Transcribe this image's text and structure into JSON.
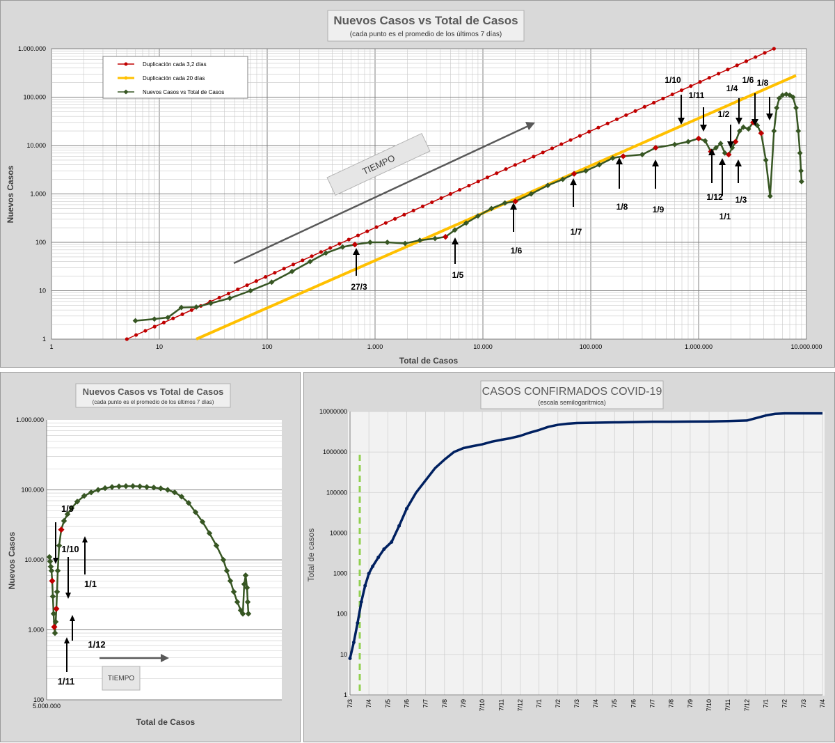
{
  "colors": {
    "red": "#c00000",
    "yellow": "#ffc000",
    "green": "#375623",
    "navy": "#002060",
    "dash": "#92d050",
    "arrow": "#595959"
  },
  "charts": {
    "top": {
      "title": "Nuevos Casos vs Total de Casos",
      "subtitle": "(cada punto  es el promedio  de los últimos  7 días)",
      "xlabel": "Total de Casos",
      "ylabel": "Nuevos Casos",
      "x_ticks": [
        "1",
        "10",
        "100",
        "1.000",
        "10.000",
        "100.000",
        "1.000.000",
        "10.000.000"
      ],
      "y_ticks": [
        "1",
        "10",
        "100",
        "1.000",
        "10.000",
        "100.000",
        "1.000.000"
      ],
      "legend": [
        "Duplicación cada 3,2 días",
        "Duplicación cada 20 días",
        "Nuevos Casos vs Total de Casos"
      ],
      "tiempo_label": "TIEMPO",
      "annotations_below": [
        "27/3",
        "1/5",
        "1/6",
        "1/7",
        "1/8",
        "1/9",
        "1/12",
        "1/1",
        "1/3"
      ],
      "annotations_above": [
        "1/10",
        "1/11",
        "1/2",
        "1/4",
        "1/6",
        "1/8"
      ]
    },
    "bottom_left": {
      "title": "Nuevos Casos vs Total de Casos",
      "subtitle": "(cada punto es el promedio de los últimos 7 días)",
      "xlabel": "Total de Casos",
      "ylabel": "Nuevos Casos",
      "x_ticks": [
        "5.000.000"
      ],
      "y_ticks": [
        "100",
        "1.000",
        "10.000",
        "100.000",
        "1.000.000"
      ],
      "tiempo_label": "TIEMPO",
      "annotations": [
        "1/9",
        "1/10",
        "1/1",
        "1/12",
        "1/11"
      ]
    },
    "bottom_right": {
      "title": "CASOS CONFIRMADOS COVID-19",
      "subtitle": "(escala semilogarítmica)",
      "ylabel": "Total de casos",
      "y_ticks": [
        "1",
        "10",
        "100",
        "1000",
        "10000",
        "100000",
        "1000000",
        "10000000"
      ],
      "x_ticks": [
        "7/3",
        "7/4",
        "7/5",
        "7/6",
        "7/7",
        "7/8",
        "7/9",
        "7/10",
        "7/11",
        "7/12",
        "7/1",
        "7/2",
        "7/3",
        "7/4",
        "7/5",
        "7/6",
        "7/7",
        "7/8",
        "7/9",
        "7/10",
        "7/11",
        "7/12",
        "7/1",
        "7/2",
        "7/3",
        "7/4"
      ]
    }
  },
  "chart_data": [
    {
      "type": "line",
      "scale": "log-log",
      "xlim": [
        1,
        10000000
      ],
      "ylim": [
        1,
        1000000
      ],
      "series": [
        {
          "name": "Duplicación cada 3,2 días",
          "x": [
            5,
            5000000
          ],
          "y": [
            1,
            1000000
          ]
        },
        {
          "name": "Duplicación cada 20 días",
          "x": [
            22,
            8000000
          ],
          "y": [
            1,
            280000
          ]
        },
        {
          "name": "Nuevos Casos vs Total de Casos",
          "x": [
            6,
            9,
            12,
            16,
            22,
            30,
            45,
            70,
            110,
            170,
            250,
            350,
            500,
            650,
            900,
            1300,
            1900,
            2600,
            3600,
            4500,
            5500,
            7000,
            9000,
            12000,
            16000,
            20000,
            28000,
            40000,
            55000,
            70000,
            90000,
            120000,
            160000,
            200000,
            300000,
            400000,
            600000,
            800000,
            1000000,
            1150000,
            1300000,
            1450000,
            1600000,
            1750000,
            1900000,
            2050000,
            2200000,
            2400000,
            2600000,
            2900000,
            3200000,
            3500000,
            3800000,
            4200000,
            4600000,
            5000000,
            5300000,
            5600000,
            6000000,
            6500000,
            7000000,
            7500000,
            8000000,
            8400000,
            8700000,
            8900000,
            9000000
          ],
          "y": [
            2.4,
            2.6,
            2.8,
            4.5,
            4.6,
            5.5,
            7,
            10,
            15,
            25,
            40,
            60,
            80,
            90,
            100,
            100,
            95,
            110,
            120,
            130,
            180,
            250,
            350,
            500,
            650,
            700,
            1000,
            1500,
            2000,
            2600,
            3000,
            4000,
            5500,
            6000,
            6500,
            9000,
            10500,
            12000,
            14000,
            12500,
            7500,
            9000,
            11000,
            7000,
            6500,
            9000,
            12000,
            20000,
            24000,
            22000,
            30000,
            26000,
            18000,
            5000,
            900,
            20000,
            60000,
            95000,
            110000,
            115000,
            110000,
            100000,
            60000,
            20000,
            7000,
            3000,
            1800
          ]
        }
      ]
    },
    {
      "type": "line",
      "scale": "semi-log",
      "ylim": [
        100,
        1000000
      ],
      "series": [
        {
          "name": "Nuevos Casos vs Total de Casos",
          "x": [
            0,
            1,
            2,
            3,
            4,
            5,
            6,
            7,
            8,
            9,
            10,
            11,
            12,
            14,
            17,
            21,
            26,
            32,
            40,
            50,
            60,
            70,
            80,
            90,
            100,
            110,
            120,
            130,
            140,
            150,
            160,
            170,
            180,
            190,
            200,
            210,
            220,
            230,
            240,
            250,
            255,
            260,
            265,
            270,
            275,
            278,
            280,
            282,
            284,
            285,
            286
          ],
          "y": [
            11000,
            9500,
            8000,
            7000,
            5000,
            3000,
            1700,
            1100,
            900,
            1300,
            2000,
            3500,
            7000,
            16000,
            27000,
            36000,
            45000,
            55000,
            68000,
            82000,
            92000,
            100000,
            106000,
            110000,
            112000,
            113000,
            113000,
            112000,
            110000,
            108000,
            105000,
            100000,
            92000,
            80000,
            65000,
            48000,
            35000,
            24000,
            16000,
            10000,
            7000,
            5000,
            3500,
            2500,
            1900,
            1700,
            4500,
            6000,
            4000,
            2500,
            1700
          ]
        }
      ]
    },
    {
      "type": "line",
      "scale": "semi-log",
      "title": "CASOS CONFIRMADOS COVID-19",
      "ylabel": "Total de casos",
      "ylim": [
        1,
        10000000
      ],
      "series": [
        {
          "name": "",
          "x": [
            0,
            0.2,
            0.4,
            0.6,
            0.8,
            1.0,
            1.2,
            1.5,
            1.8,
            2.2,
            2.6,
            3.0,
            3.5,
            4.0,
            4.5,
            5.0,
            5.5,
            6.0,
            6.5,
            7.0,
            7.5,
            8.0,
            8.5,
            9.0,
            9.5,
            10.0,
            10.5,
            11.0,
            11.5,
            12.0,
            13.0,
            14.0,
            14.5,
            15.0,
            15.5,
            16.0,
            17.0,
            18.0,
            19.0,
            20.0,
            21.0,
            22.0,
            22.5,
            23.0,
            23.5,
            24.0,
            24.5,
            25.0
          ],
          "y": [
            8,
            20,
            60,
            200,
            500,
            1000,
            1500,
            2500,
            4000,
            6000,
            15000,
            40000,
            100000,
            200000,
            400000,
            650000,
            1000000,
            1250000,
            1400000,
            1550000,
            1800000,
            2000000,
            2200000,
            2500000,
            3000000,
            3500000,
            4200000,
            4700000,
            5000000,
            5200000,
            5300000,
            5400000,
            5450000,
            5500000,
            5550000,
            5600000,
            5600000,
            5650000,
            5700000,
            5800000,
            6000000,
            8000000,
            8800000,
            9000000,
            9000000,
            9000000,
            9000000,
            9000000
          ]
        }
      ]
    }
  ]
}
